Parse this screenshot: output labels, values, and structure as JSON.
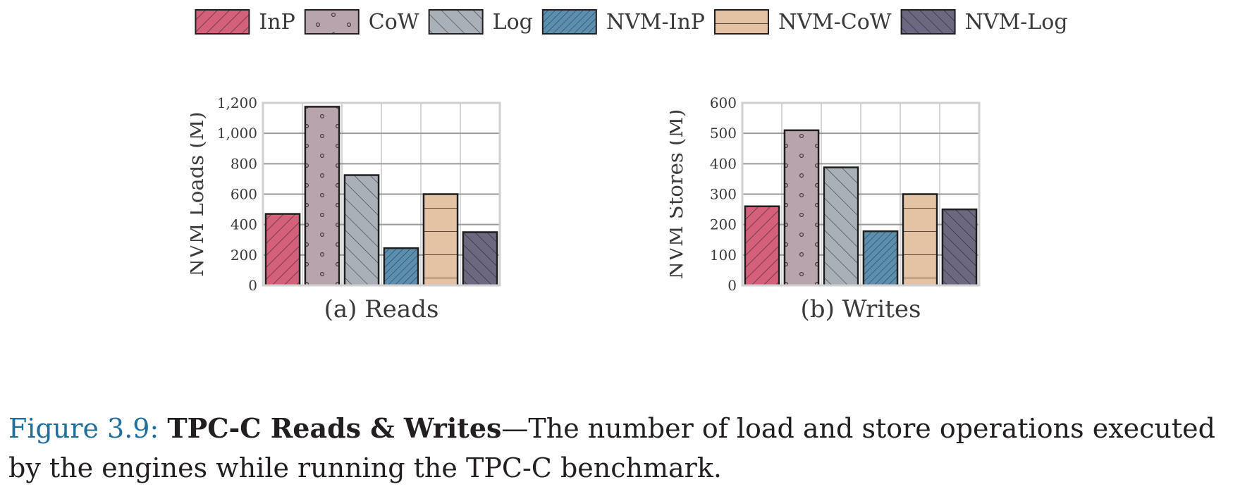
{
  "colors": {
    "InP": "#d4607a",
    "CoW": "#b8a4ad",
    "Log": "#a9b0b8",
    "NVM-InP": "#5c8fae",
    "NVM-CoW": "#e3c3a3",
    "NVM-Log": "#6b6880"
  },
  "legend": [
    "InP",
    "CoW",
    "Log",
    "NVM-InP",
    "NVM-CoW",
    "NVM-Log"
  ],
  "chart_data": [
    {
      "type": "bar",
      "subtitle": "(a) Reads",
      "ylabel": "NVM Loads (M)",
      "ylim": [
        0,
        1200
      ],
      "yticks": [
        "0",
        "200",
        "400",
        "600",
        "800",
        "1,000",
        "1,200"
      ],
      "categories": [
        "InP",
        "CoW",
        "Log",
        "NVM-InP",
        "NVM-CoW",
        "NVM-Log"
      ],
      "values": [
        470,
        1175,
        725,
        245,
        600,
        350
      ],
      "grid": true
    },
    {
      "type": "bar",
      "subtitle": "(b) Writes",
      "ylabel": "NVM Stores (M)",
      "ylim": [
        0,
        600
      ],
      "yticks": [
        "0",
        "100",
        "200",
        "300",
        "400",
        "500",
        "600"
      ],
      "categories": [
        "InP",
        "CoW",
        "Log",
        "NVM-InP",
        "NVM-CoW",
        "NVM-Log"
      ],
      "values": [
        260,
        510,
        388,
        178,
        300,
        250
      ],
      "grid": true
    }
  ],
  "caption": {
    "figure": "Figure 3.9:",
    "title": "TPC-C Reads & Writes",
    "text": "—The number of load and store operations executed by the engines while running the TPC-C benchmark."
  }
}
